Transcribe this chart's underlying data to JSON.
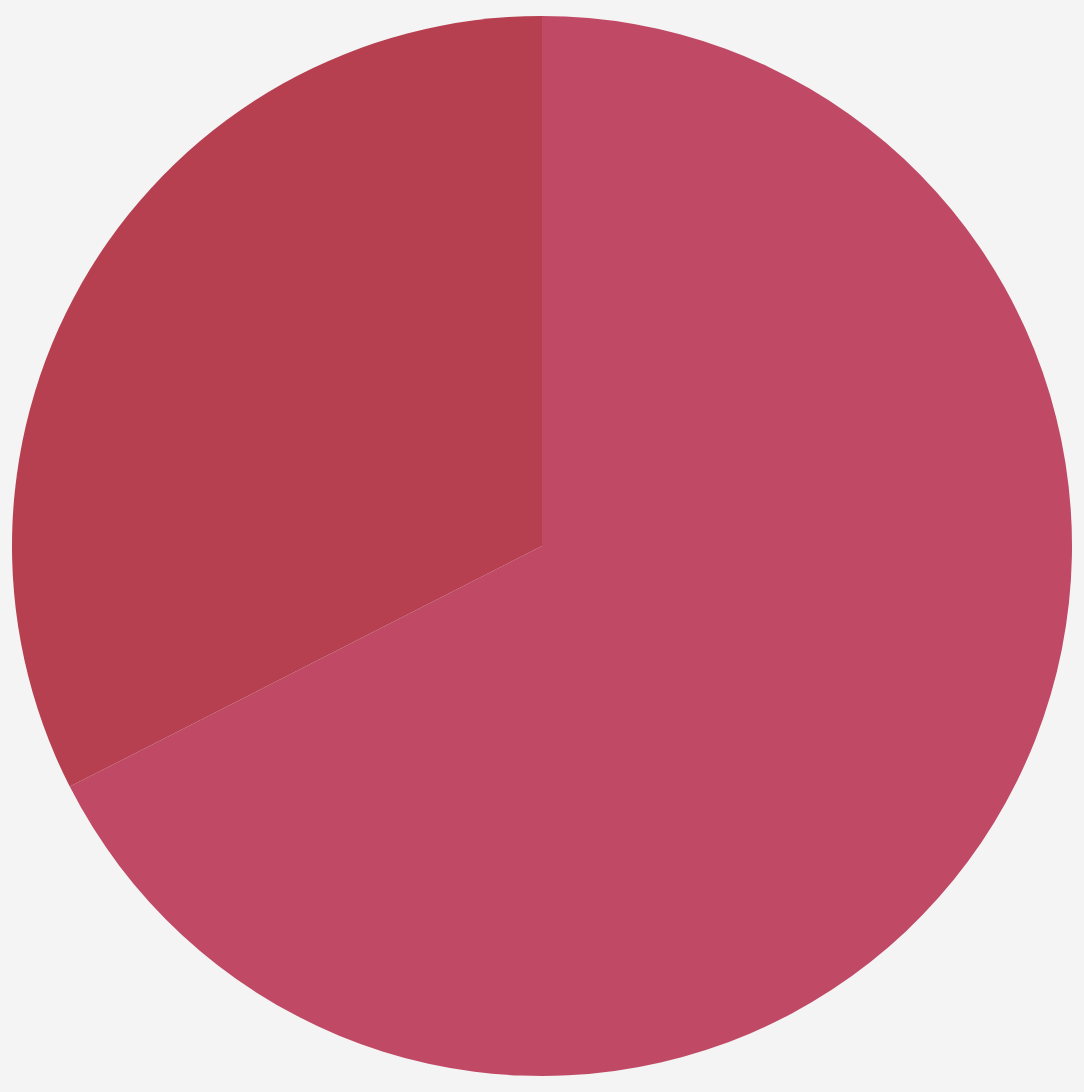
{
  "chart_data": {
    "type": "pie",
    "categories": [
      null,
      null
    ],
    "values": [
      67.5,
      32.5
    ],
    "colors": [
      "#c04a66",
      "#b63f50"
    ]
  }
}
